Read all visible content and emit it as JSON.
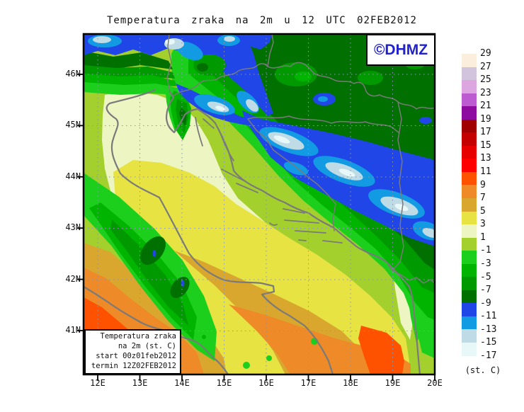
{
  "title": "Temperatura zraka na 2m u 12 UTC 02FEB2012",
  "branding": {
    "label": "©DHMZ",
    "color": "#2222cc"
  },
  "info_box": {
    "lines": [
      "Temperatura zraka",
      "na 2m (st. C)",
      "start 00z01feb2012",
      "termin 12Z02FEB2012"
    ]
  },
  "axes": {
    "lat_labels": [
      "46N",
      "45N",
      "44N",
      "43N",
      "42N",
      "41N"
    ],
    "lon_labels": [
      "12E",
      "13E",
      "14E",
      "15E",
      "16E",
      "17E",
      "18E",
      "19E",
      "20E"
    ]
  },
  "legend": {
    "unit": "(st. C)",
    "tick_labels": [
      "29",
      "27",
      "25",
      "23",
      "21",
      "19",
      "17",
      "15",
      "13",
      "11",
      "9",
      "7",
      "5",
      "3",
      "1",
      "-1",
      "-3",
      "-5",
      "-7",
      "-9",
      "-11",
      "-13",
      "-15",
      "-17"
    ],
    "colors": [
      "#fceedd",
      "#d2c4dc",
      "#dda6e0",
      "#bd5bd1",
      "#8e0ba0",
      "#a00000",
      "#c40000",
      "#e60000",
      "#ff0000",
      "#ff5200",
      "#ee8a28",
      "#d9a62e",
      "#e6e343",
      "#edf5c3",
      "#a4d02d",
      "#1ccf1c",
      "#00b400",
      "#009a00",
      "#007000",
      "#2046e8",
      "#129ae2",
      "#bfdbe6",
      "#e8f8f8"
    ]
  },
  "map_style": {
    "grid_color": "#8a97ad",
    "coast_color": "#7a7a7a",
    "frame_color": "#000000"
  }
}
